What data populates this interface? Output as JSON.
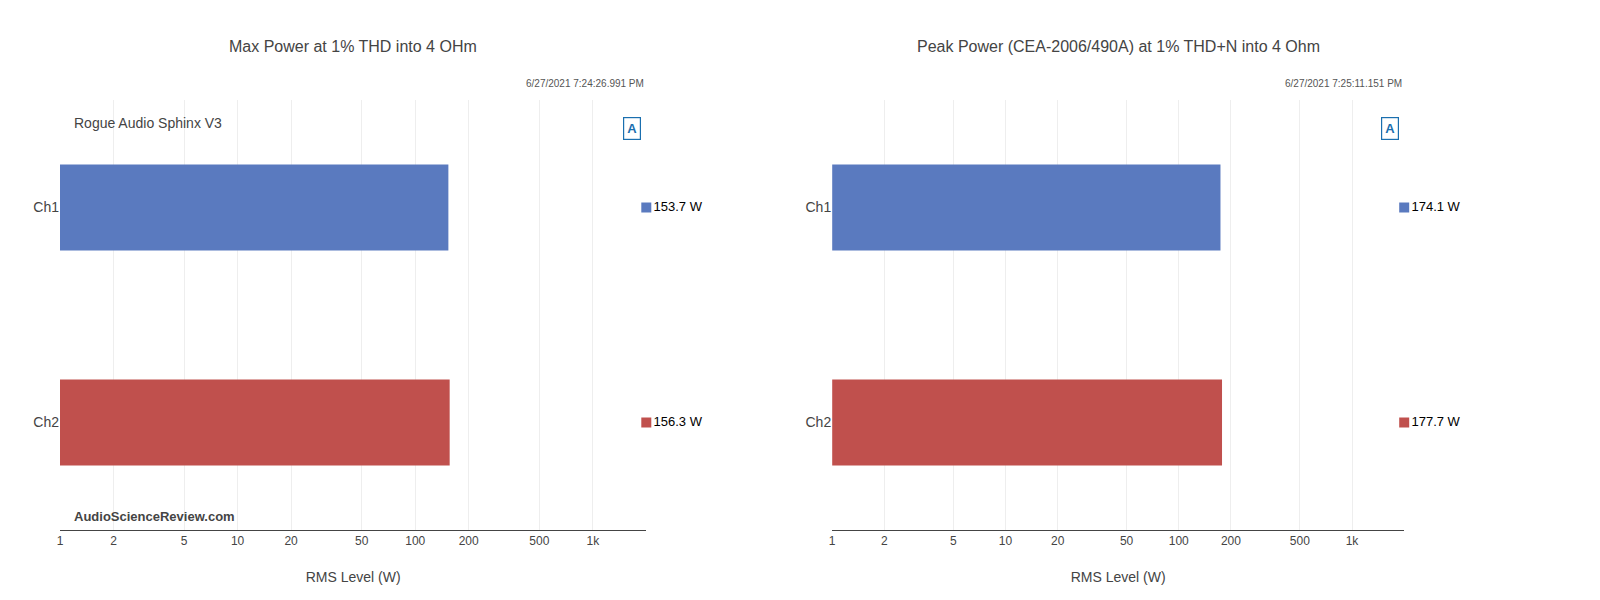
{
  "chart_data": [
    {
      "type": "bar",
      "orientation": "horizontal",
      "title": "Max Power at 1% THD into 4 OHm",
      "subtitle": "Rogue Audio Sphinx V3",
      "annotations": [
        "6/27/2021 7:24:26.991 PM",
        "AudioScienceReview.com",
        "A"
      ],
      "xlabel": "RMS Level (W)",
      "categories": [
        "Ch1",
        "Ch2"
      ],
      "values": [
        153.7,
        156.3
      ],
      "value_labels": [
        "153.7 W",
        "156.3 W"
      ],
      "data_labels": true,
      "colors": [
        "#5a7abf",
        "#c0504d"
      ],
      "log": "x",
      "xlim": [
        1,
        2000
      ],
      "xticks": [
        1,
        2,
        5,
        10,
        20,
        50,
        100,
        200,
        500,
        {
          "value": 1000,
          "label": "1k"
        }
      ],
      "grid": true
    },
    {
      "type": "bar",
      "orientation": "horizontal",
      "title": "Peak Power (CEA-2006/490A) at 1% THD+N into 4 Ohm",
      "annotations": [
        "6/27/2021 7:25:11.151 PM",
        "A"
      ],
      "xlabel": "RMS Level (W)",
      "categories": [
        "Ch1",
        "Ch2"
      ],
      "values": [
        174.1,
        177.7
      ],
      "value_labels": [
        "174.1 W",
        "177.7 W"
      ],
      "data_labels": true,
      "colors": [
        "#5a7abf",
        "#c0504d"
      ],
      "log": "x",
      "xlim": [
        1,
        2000
      ],
      "xticks": [
        1,
        2,
        5,
        10,
        20,
        50,
        100,
        200,
        500,
        {
          "value": 1000,
          "label": "1k"
        }
      ],
      "grid": true
    }
  ]
}
